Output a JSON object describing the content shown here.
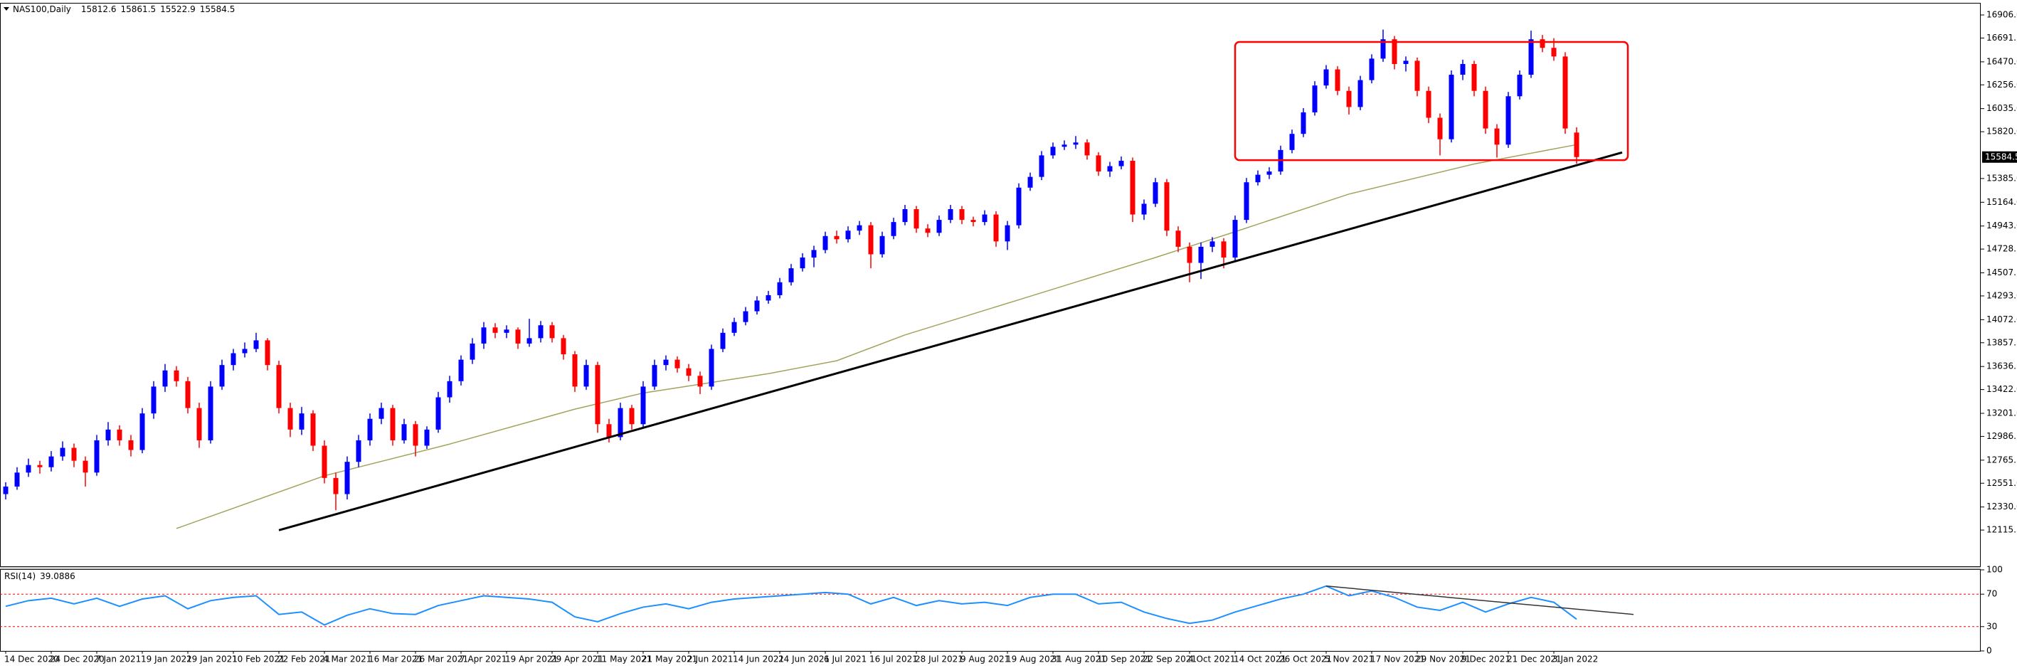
{
  "chart_data": [
    {
      "type": "candlestick",
      "title": "NAS100,Daily",
      "up_color": "#0000ff",
      "down_color": "#ff0000",
      "candles": [
        [
          12450,
          12560,
          12400,
          12520
        ],
        [
          12520,
          12700,
          12490,
          12650
        ],
        [
          12650,
          12780,
          12610,
          12720
        ],
        [
          12720,
          12760,
          12640,
          12700
        ],
        [
          12700,
          12850,
          12660,
          12800
        ],
        [
          12800,
          12940,
          12760,
          12880
        ],
        [
          12880,
          12920,
          12700,
          12760
        ],
        [
          12760,
          12800,
          12520,
          12650
        ],
        [
          12650,
          13000,
          12620,
          12950
        ],
        [
          12950,
          13120,
          12900,
          13050
        ],
        [
          13050,
          13090,
          12900,
          12950
        ],
        [
          12950,
          13000,
          12800,
          12860
        ],
        [
          12860,
          13250,
          12830,
          13200
        ],
        [
          13200,
          13500,
          13150,
          13450
        ],
        [
          13450,
          13660,
          13400,
          13600
        ],
        [
          13600,
          13640,
          13450,
          13500
        ],
        [
          13500,
          13540,
          13200,
          13250
        ],
        [
          13250,
          13300,
          12880,
          12950
        ],
        [
          12950,
          13500,
          12920,
          13450
        ],
        [
          13450,
          13700,
          13420,
          13650
        ],
        [
          13650,
          13800,
          13600,
          13760
        ],
        [
          13760,
          13860,
          13720,
          13800
        ],
        [
          13800,
          13950,
          13770,
          13880
        ],
        [
          13880,
          13900,
          13600,
          13650
        ],
        [
          13650,
          13690,
          13200,
          13250
        ],
        [
          13250,
          13300,
          12980,
          13050
        ],
        [
          13050,
          13260,
          13000,
          13200
        ],
        [
          13200,
          13230,
          12850,
          12900
        ],
        [
          12900,
          12950,
          12550,
          12600
        ],
        [
          12600,
          12650,
          12300,
          12450
        ],
        [
          12450,
          12800,
          12400,
          12750
        ],
        [
          12750,
          13000,
          12700,
          12950
        ],
        [
          12950,
          13200,
          12900,
          13150
        ],
        [
          13150,
          13300,
          13100,
          13250
        ],
        [
          13250,
          13280,
          12900,
          12950
        ],
        [
          12950,
          13150,
          12920,
          13100
        ],
        [
          13100,
          13130,
          12800,
          12900
        ],
        [
          12900,
          13080,
          12870,
          13050
        ],
        [
          13050,
          13400,
          13020,
          13350
        ],
        [
          13350,
          13550,
          13300,
          13500
        ],
        [
          13500,
          13740,
          13460,
          13700
        ],
        [
          13700,
          13900,
          13660,
          13850
        ],
        [
          13850,
          14050,
          13800,
          14000
        ],
        [
          14000,
          14040,
          13900,
          13950
        ],
        [
          13950,
          14020,
          13900,
          13980
        ],
        [
          13980,
          14000,
          13800,
          13850
        ],
        [
          13850,
          14080,
          13820,
          13900
        ],
        [
          13900,
          14060,
          13860,
          14020
        ],
        [
          14020,
          14050,
          13860,
          13900
        ],
        [
          13900,
          13930,
          13700,
          13750
        ],
        [
          13750,
          13780,
          13400,
          13450
        ],
        [
          13450,
          13700,
          13420,
          13650
        ],
        [
          13650,
          13680,
          13020,
          13100
        ],
        [
          13100,
          13150,
          12930,
          12980
        ],
        [
          12980,
          13300,
          12950,
          13250
        ],
        [
          13250,
          13280,
          13050,
          13100
        ],
        [
          13100,
          13500,
          13070,
          13450
        ],
        [
          13450,
          13700,
          13420,
          13650
        ],
        [
          13650,
          13740,
          13600,
          13700
        ],
        [
          13700,
          13730,
          13580,
          13620
        ],
        [
          13620,
          13660,
          13500,
          13550
        ],
        [
          13550,
          13590,
          13380,
          13450
        ],
        [
          13450,
          13840,
          13420,
          13800
        ],
        [
          13800,
          13990,
          13770,
          13950
        ],
        [
          13950,
          14090,
          13920,
          14050
        ],
        [
          14050,
          14190,
          14020,
          14150
        ],
        [
          14150,
          14290,
          14120,
          14250
        ],
        [
          14250,
          14340,
          14220,
          14300
        ],
        [
          14300,
          14460,
          14270,
          14420
        ],
        [
          14420,
          14590,
          14390,
          14550
        ],
        [
          14550,
          14690,
          14520,
          14650
        ],
        [
          14650,
          14760,
          14560,
          14720
        ],
        [
          14720,
          14890,
          14690,
          14850
        ],
        [
          14850,
          14900,
          14780,
          14820
        ],
        [
          14820,
          14940,
          14790,
          14900
        ],
        [
          14900,
          14990,
          14860,
          14950
        ],
        [
          14950,
          14980,
          14550,
          14680
        ],
        [
          14680,
          14890,
          14650,
          14850
        ],
        [
          14850,
          15020,
          14820,
          14980
        ],
        [
          14980,
          15140,
          14950,
          15100
        ],
        [
          15100,
          15130,
          14880,
          14920
        ],
        [
          14920,
          14960,
          14840,
          14880
        ],
        [
          14880,
          15040,
          14850,
          15000
        ],
        [
          15000,
          15140,
          14970,
          15100
        ],
        [
          15100,
          15130,
          14960,
          15000
        ],
        [
          15000,
          15030,
          14940,
          14980
        ],
        [
          14980,
          15090,
          14950,
          15050
        ],
        [
          15050,
          15080,
          14750,
          14800
        ],
        [
          14800,
          14990,
          14720,
          14950
        ],
        [
          14950,
          15340,
          14920,
          15300
        ],
        [
          15300,
          15440,
          15270,
          15400
        ],
        [
          15400,
          15640,
          15370,
          15600
        ],
        [
          15600,
          15720,
          15570,
          15680
        ],
        [
          15680,
          15740,
          15650,
          15700
        ],
        [
          15700,
          15780,
          15660,
          15720
        ],
        [
          15720,
          15750,
          15560,
          15600
        ],
        [
          15600,
          15630,
          15410,
          15450
        ],
        [
          15450,
          15540,
          15400,
          15500
        ],
        [
          15500,
          15590,
          15470,
          15550
        ],
        [
          15550,
          15580,
          14980,
          15050
        ],
        [
          15050,
          15190,
          15000,
          15150
        ],
        [
          15150,
          15390,
          15120,
          15350
        ],
        [
          15350,
          15380,
          14850,
          14900
        ],
        [
          14900,
          14940,
          14700,
          14750
        ],
        [
          14750,
          14790,
          14420,
          14600
        ],
        [
          14600,
          14790,
          14450,
          14750
        ],
        [
          14750,
          14840,
          14700,
          14800
        ],
        [
          14800,
          14830,
          14550,
          14650
        ],
        [
          14650,
          15040,
          14620,
          15000
        ],
        [
          15000,
          15390,
          14970,
          15350
        ],
        [
          15350,
          15460,
          15320,
          15420
        ],
        [
          15420,
          15490,
          15380,
          15450
        ],
        [
          15450,
          15690,
          15420,
          15650
        ],
        [
          15650,
          15840,
          15620,
          15800
        ],
        [
          15800,
          16040,
          15770,
          16000
        ],
        [
          16000,
          16290,
          15970,
          16250
        ],
        [
          16250,
          16440,
          16220,
          16400
        ],
        [
          16400,
          16430,
          16160,
          16200
        ],
        [
          16200,
          16240,
          15980,
          16050
        ],
        [
          16050,
          16340,
          16020,
          16300
        ],
        [
          16300,
          16540,
          16270,
          16500
        ],
        [
          16500,
          16770,
          16470,
          16680
        ],
        [
          16680,
          16710,
          16400,
          16450
        ],
        [
          16450,
          16520,
          16380,
          16480
        ],
        [
          16480,
          16510,
          16150,
          16200
        ],
        [
          16200,
          16240,
          15900,
          15950
        ],
        [
          15950,
          15990,
          15600,
          15750
        ],
        [
          15750,
          16390,
          15720,
          16350
        ],
        [
          16350,
          16490,
          16300,
          16450
        ],
        [
          16450,
          16480,
          16150,
          16200
        ],
        [
          16200,
          16240,
          15800,
          15850
        ],
        [
          15850,
          15890,
          15580,
          15700
        ],
        [
          15700,
          16190,
          15670,
          16150
        ],
        [
          16150,
          16390,
          16120,
          16350
        ],
        [
          16350,
          16760,
          16320,
          16680
        ],
        [
          16680,
          16720,
          16560,
          16600
        ],
        [
          16600,
          16690,
          16480,
          16520
        ],
        [
          16520,
          16560,
          15800,
          15850
        ],
        [
          15812.6,
          15861.5,
          15522.9,
          15584.5
        ]
      ],
      "xlim": [
        -0.5,
        173.5
      ],
      "xticks": [
        {
          "value": 0,
          "label": "14 Dec 2020"
        },
        {
          "value": 4,
          "label": "24 Dec 2020"
        },
        {
          "value": 8,
          "label": "7 Jan 2021"
        },
        {
          "value": 12,
          "label": "19 Jan 2021"
        },
        {
          "value": 16,
          "label": "29 Jan 2021"
        },
        {
          "value": 20,
          "label": "10 Feb 2021"
        },
        {
          "value": 24,
          "label": "22 Feb 2021"
        },
        {
          "value": 28,
          "label": "4 Mar 2021"
        },
        {
          "value": 32,
          "label": "16 Mar 2021"
        },
        {
          "value": 36,
          "label": "26 Mar 2021"
        },
        {
          "value": 40,
          "label": "7 Apr 2021"
        },
        {
          "value": 44,
          "label": "19 Apr 2021"
        },
        {
          "value": 48,
          "label": "29 Apr 2021"
        },
        {
          "value": 52,
          "label": "11 May 2021"
        },
        {
          "value": 56,
          "label": "21 May 2021"
        },
        {
          "value": 60,
          "label": "2 Jun 2021"
        },
        {
          "value": 64,
          "label": "14 Jun 2021"
        },
        {
          "value": 68,
          "label": "24 Jun 2021"
        },
        {
          "value": 72,
          "label": "6 Jul 2021"
        },
        {
          "value": 76,
          "label": "16 Jul 2021"
        },
        {
          "value": 80,
          "label": "28 Jul 2021"
        },
        {
          "value": 84,
          "label": "9 Aug 2021"
        },
        {
          "value": 88,
          "label": "19 Aug 2021"
        },
        {
          "value": 92,
          "label": "31 Aug 2021"
        },
        {
          "value": 96,
          "label": "10 Sep 2021"
        },
        {
          "value": 100,
          "label": "22 Sep 2021"
        },
        {
          "value": 104,
          "label": "4 Oct 2021"
        },
        {
          "value": 108,
          "label": "14 Oct 2021"
        },
        {
          "value": 112,
          "label": "26 Oct 2021"
        },
        {
          "value": 116,
          "label": "5 Nov 2021"
        },
        {
          "value": 120,
          "label": "17 Nov 2021"
        },
        {
          "value": 124,
          "label": "29 Nov 2021"
        },
        {
          "value": 128,
          "label": "9 Dec 2021"
        },
        {
          "value": 132,
          "label": "21 Dec 2021"
        },
        {
          "value": 136,
          "label": "3 Jan 2022"
        }
      ],
      "ylim": [
        11772,
        17012
      ],
      "yticks": [
        {
          "value": 16906,
          "label": "16906.0"
        },
        16691.5,
        {
          "value": 16470,
          "label": "16470.0"
        },
        {
          "value": 16256,
          "label": "16256.0"
        },
        {
          "value": 16035,
          "label": "16035.0"
        },
        {
          "value": 15820,
          "label": "15820.0"
        },
        {
          "value": 15385,
          "label": "15385.0"
        },
        {
          "value": 15164,
          "label": "15164.0"
        },
        {
          "value": 14943,
          "label": "14943.0"
        },
        14728.5,
        14507.5,
        {
          "value": 14293,
          "label": "14293.0"
        },
        {
          "value": 14072,
          "label": "14072.0"
        },
        13857.5,
        13636.5,
        {
          "value": 13422,
          "label": "13422.0"
        },
        {
          "value": 13201,
          "label": "13201.0"
        },
        12986.5,
        12765.5,
        {
          "value": 12551,
          "label": "12551.0"
        },
        {
          "value": 12330,
          "label": "12330.0"
        },
        12115.5
      ],
      "ma": {
        "color": "#a3a35c",
        "x": [
          15,
          28,
          39,
          50,
          56,
          67,
          73,
          79,
          90,
          101,
          108,
          118,
          129,
          138
        ],
        "values": [
          12130,
          12620,
          12915,
          13240,
          13390,
          13570,
          13690,
          13930,
          14290,
          14650,
          14890,
          15240,
          15520,
          15700
        ]
      },
      "trendline": {
        "color": "#000000",
        "x": [
          24,
          142
        ],
        "values": [
          12114,
          15627
        ]
      },
      "box": {
        "color": "#ff0000",
        "x": [
          108,
          142.5
        ],
        "y": [
          15556,
          16655
        ]
      }
    },
    {
      "type": "line",
      "title": "RSI(14)",
      "color": "#1e8fff",
      "x": [
        0,
        2,
        4,
        6,
        8,
        10,
        12,
        14,
        16,
        18,
        20,
        22,
        24,
        26,
        28,
        30,
        32,
        34,
        36,
        38,
        40,
        42,
        44,
        46,
        48,
        50,
        52,
        54,
        56,
        58,
        60,
        62,
        64,
        66,
        68,
        70,
        72,
        74,
        76,
        78,
        80,
        82,
        84,
        86,
        88,
        90,
        92,
        94,
        96,
        98,
        100,
        102,
        104,
        106,
        108,
        110,
        112,
        114,
        116,
        118,
        120,
        122,
        124,
        126,
        128,
        130,
        132,
        134,
        136,
        138
      ],
      "values": [
        55,
        62,
        65,
        58,
        65,
        55,
        64,
        68,
        52,
        62,
        66,
        68,
        45,
        48,
        32,
        44,
        52,
        46,
        45,
        56,
        62,
        68,
        66,
        64,
        60,
        42,
        36,
        46,
        54,
        58,
        52,
        60,
        64,
        66,
        68,
        70,
        72,
        70,
        58,
        66,
        56,
        62,
        58,
        60,
        56,
        66,
        70,
        70,
        58,
        60,
        48,
        40,
        34,
        38,
        48,
        56,
        64,
        70,
        80,
        68,
        74,
        66,
        54,
        50,
        60,
        48,
        58,
        66,
        60,
        39.0886
      ],
      "ylim": [
        0,
        100
      ],
      "yticks": [
        100,
        70,
        30,
        0
      ],
      "levels": [
        70,
        30
      ],
      "level_color": "#ff0000",
      "trendline": {
        "color": "#333333",
        "x": [
          116,
          143
        ],
        "values": [
          80,
          45
        ]
      }
    }
  ]
}
